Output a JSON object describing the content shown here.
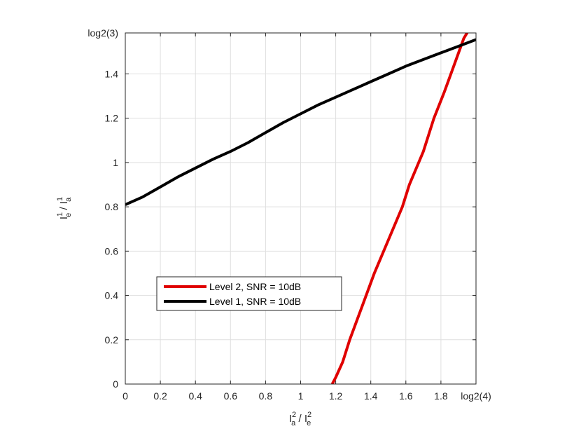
{
  "chart_data": {
    "type": "line",
    "title": "",
    "xlabel": {
      "base": "I",
      "sup": "2",
      "sub": "a",
      "sep": " / ",
      "base2": "I",
      "sup2": "2",
      "sub2": "e"
    },
    "ylabel": {
      "base": "I",
      "sup": "1",
      "sub": "e",
      "sep": " / ",
      "base2": "I",
      "sup2": "1",
      "sub2": "a"
    },
    "xlim": [
      0,
      2.0
    ],
    "ylim": [
      0,
      1.585
    ],
    "xticks": [
      {
        "value": 0,
        "label": "0"
      },
      {
        "value": 0.2,
        "label": "0.2"
      },
      {
        "value": 0.4,
        "label": "0.4"
      },
      {
        "value": 0.6,
        "label": "0.6"
      },
      {
        "value": 0.8,
        "label": "0.8"
      },
      {
        "value": 1.0,
        "label": "1"
      },
      {
        "value": 1.2,
        "label": "1.2"
      },
      {
        "value": 1.4,
        "label": "1.4"
      },
      {
        "value": 1.6,
        "label": "1.6"
      },
      {
        "value": 1.8,
        "label": "1.8"
      },
      {
        "value": 2.0,
        "label": "log2(4)"
      }
    ],
    "yticks": [
      {
        "value": 0,
        "label": "0"
      },
      {
        "value": 0.2,
        "label": "0.2"
      },
      {
        "value": 0.4,
        "label": "0.4"
      },
      {
        "value": 0.6,
        "label": "0.6"
      },
      {
        "value": 0.8,
        "label": "0.8"
      },
      {
        "value": 1.0,
        "label": "1"
      },
      {
        "value": 1.2,
        "label": "1.2"
      },
      {
        "value": 1.4,
        "label": "1.4"
      },
      {
        "value": 1.585,
        "label": "log2(3)"
      }
    ],
    "grid": true,
    "legend_position": "lower-left",
    "series": [
      {
        "name": "Level 2, SNR = 10dB",
        "color": "#e00000",
        "x": [
          1.18,
          1.2,
          1.24,
          1.28,
          1.35,
          1.42,
          1.5,
          1.58,
          1.62,
          1.7,
          1.76,
          1.82,
          1.88,
          1.93,
          1.96
        ],
        "y": [
          0.0,
          0.03,
          0.1,
          0.2,
          0.35,
          0.5,
          0.65,
          0.8,
          0.9,
          1.05,
          1.2,
          1.32,
          1.45,
          1.56,
          1.6
        ]
      },
      {
        "name": "Level 1, SNR = 10dB",
        "color": "#000000",
        "x": [
          0.0,
          0.1,
          0.2,
          0.3,
          0.4,
          0.5,
          0.6,
          0.7,
          0.8,
          0.9,
          1.0,
          1.1,
          1.2,
          1.3,
          1.4,
          1.5,
          1.6,
          1.7,
          1.8,
          1.9,
          2.0
        ],
        "y": [
          0.81,
          0.845,
          0.89,
          0.935,
          0.975,
          1.015,
          1.05,
          1.09,
          1.135,
          1.18,
          1.22,
          1.26,
          1.295,
          1.33,
          1.365,
          1.4,
          1.435,
          1.465,
          1.495,
          1.525,
          1.555
        ]
      }
    ]
  }
}
